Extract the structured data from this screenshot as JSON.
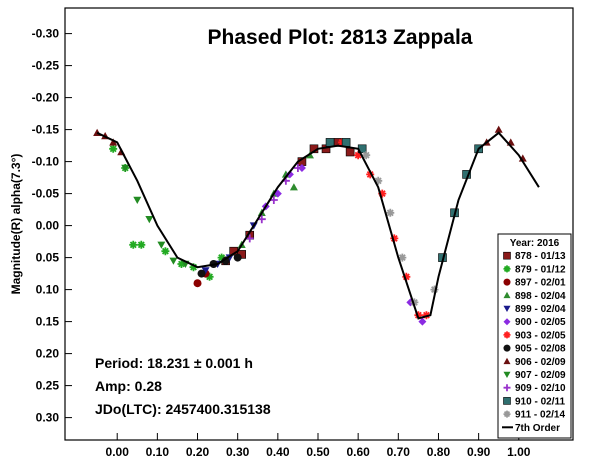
{
  "chart_data": {
    "type": "scatter",
    "title": "Phased Plot: 2813 Zappala",
    "y_label": "Magnitude(R) alpha(7.3°)",
    "annotations": [
      "Period: 18.231 ± 0.001 h",
      "Amp: 0.28",
      "JDo(LTC): 2457400.315138"
    ],
    "legend_title": "Year: 2016",
    "legend": "lower right",
    "y_inverted": true,
    "xlim": [
      -0.13,
      1.135
    ],
    "ylim": [
      -0.34,
      0.335
    ],
    "xticks": [
      {
        "value": 0,
        "label": "0.00"
      },
      {
        "value": 0.1,
        "label": "0.10"
      },
      {
        "value": 0.2,
        "label": "0.20"
      },
      {
        "value": 0.3,
        "label": "0.30"
      },
      {
        "value": 0.4,
        "label": "0.40"
      },
      {
        "value": 0.5,
        "label": "0.50"
      },
      {
        "value": 0.6,
        "label": "0.60"
      },
      {
        "value": 0.7,
        "label": "0.70"
      },
      {
        "value": 0.8,
        "label": "0.80"
      },
      {
        "value": 0.9,
        "label": "0.90"
      },
      {
        "value": 1,
        "label": "1.00"
      }
    ],
    "yticks": [
      {
        "value": -0.3,
        "label": "-0.30"
      },
      {
        "value": -0.25,
        "label": "-0.25"
      },
      {
        "value": -0.2,
        "label": "-0.20"
      },
      {
        "value": -0.15,
        "label": "-0.15"
      },
      {
        "value": -0.1,
        "label": "-0.10"
      },
      {
        "value": -0.05,
        "label": "-0.05"
      },
      {
        "value": 0,
        "label": "0.00"
      },
      {
        "value": 0.05,
        "label": "0.05"
      },
      {
        "value": 0.1,
        "label": "0.10"
      },
      {
        "value": 0.15,
        "label": "0.15"
      },
      {
        "value": 0.2,
        "label": "0.20"
      },
      {
        "value": 0.25,
        "label": "0.25"
      },
      {
        "value": 0.3,
        "label": "0.30"
      }
    ],
    "series": [
      {
        "name": "878 - 01/13",
        "color": "#8b1a1a",
        "marker": "square",
        "x": [
          0.27,
          0.29,
          0.31,
          0.33,
          0.46,
          0.49,
          0.52,
          0.55,
          0.58
        ],
        "values": [
          0.055,
          0.04,
          0.045,
          0.015,
          -0.1,
          -0.12,
          -0.12,
          -0.13,
          -0.115
        ]
      },
      {
        "name": "879 - 01/12",
        "color": "#22aa22",
        "marker": "asterisk",
        "x": [
          -0.01,
          0.02,
          0.04,
          0.06,
          0.12,
          0.16,
          0.19,
          0.23,
          0.26,
          1.06
        ],
        "values": [
          -0.12,
          -0.09,
          0.03,
          0.03,
          0.04,
          0.06,
          0.065,
          0.08,
          0.05,
          0.03
        ]
      },
      {
        "name": "897 - 02/01",
        "color": "#8b0000",
        "marker": "circle",
        "x": [
          0.2,
          0.22
        ],
        "values": [
          0.09,
          0.075
        ]
      },
      {
        "name": "898 - 02/04",
        "color": "#2e8b2e",
        "marker": "triangle",
        "x": [
          0.31,
          0.36,
          0.39,
          0.42,
          0.44,
          0.48
        ],
        "values": [
          0.03,
          -0.02,
          -0.05,
          -0.08,
          -0.06,
          -0.11
        ]
      },
      {
        "name": "899 - 02/04",
        "color": "#1a1a8b",
        "marker": "triangle-down",
        "x": [
          0.22,
          0.25,
          0.28,
          0.34
        ],
        "values": [
          0.07,
          0.06,
          0.05,
          0
        ]
      },
      {
        "name": "900 - 02/05",
        "color": "#8b2be2",
        "marker": "diamond",
        "x": [
          0.37,
          0.4,
          0.43,
          0.46,
          0.73,
          0.76
        ],
        "values": [
          -0.03,
          -0.05,
          -0.08,
          -0.09,
          0.12,
          0.15
        ]
      },
      {
        "name": "903 - 02/05",
        "color": "#ff2020",
        "marker": "asterisk",
        "x": [
          0.56,
          0.6,
          0.63,
          0.66,
          0.69,
          0.72,
          0.75,
          0.77
        ],
        "values": [
          -0.13,
          -0.11,
          -0.08,
          -0.05,
          0.02,
          0.08,
          0.14,
          0.14
        ]
      },
      {
        "name": "905 - 02/08",
        "color": "#111111",
        "marker": "circle",
        "x": [
          0.21,
          0.24,
          0.27,
          0.3
        ],
        "values": [
          0.075,
          0.06,
          0.055,
          0.05
        ]
      },
      {
        "name": "906 - 02/09",
        "color": "#6b1010",
        "marker": "triangle",
        "x": [
          -0.05,
          -0.03,
          -0.01,
          0.01,
          0.92,
          0.95,
          0.98,
          1.01
        ],
        "values": [
          -0.145,
          -0.14,
          -0.13,
          -0.115,
          -0.13,
          -0.15,
          -0.13,
          -0.105
        ]
      },
      {
        "name": "907 - 02/09",
        "color": "#228b22",
        "marker": "triangle-down",
        "x": [
          0.02,
          0.05,
          0.08,
          0.11,
          0.14,
          0.17
        ],
        "values": [
          -0.09,
          -0.04,
          -0.01,
          0.03,
          0.055,
          0.06
        ]
      },
      {
        "name": "909 - 02/10",
        "color": "#9932cc",
        "marker": "plus",
        "x": [
          0.33,
          0.36,
          0.39,
          0.42,
          0.45
        ],
        "values": [
          0.02,
          -0.01,
          -0.04,
          -0.07,
          -0.09
        ]
      },
      {
        "name": "910 - 02/11",
        "color": "#2f6f6f",
        "marker": "square",
        "x": [
          0.53,
          0.57,
          0.61,
          0.81,
          0.84,
          0.87,
          0.9
        ],
        "values": [
          -0.13,
          -0.13,
          -0.12,
          0.05,
          -0.02,
          -0.08,
          -0.12
        ]
      },
      {
        "name": "911 - 02/14",
        "color": "#999999",
        "marker": "asterisk",
        "x": [
          0.62,
          0.65,
          0.68,
          0.71,
          0.74,
          0.79
        ],
        "values": [
          -0.11,
          -0.07,
          -0.02,
          0.05,
          0.12,
          0.1
        ]
      }
    ],
    "fit": {
      "name": "7th Order",
      "color": "#000000",
      "x": [
        -0.05,
        0,
        0.05,
        0.1,
        0.15,
        0.2,
        0.25,
        0.3,
        0.35,
        0.4,
        0.45,
        0.5,
        0.55,
        0.6,
        0.65,
        0.7,
        0.75,
        0.78,
        0.8,
        0.85,
        0.9,
        0.95,
        1,
        1.05
      ],
      "values": [
        -0.145,
        -0.13,
        -0.07,
        0,
        0.05,
        0.065,
        0.06,
        0.04,
        -0.01,
        -0.06,
        -0.1,
        -0.12,
        -0.125,
        -0.12,
        -0.06,
        0.05,
        0.145,
        0.14,
        0.08,
        -0.04,
        -0.12,
        -0.145,
        -0.11,
        -0.06
      ]
    }
  }
}
